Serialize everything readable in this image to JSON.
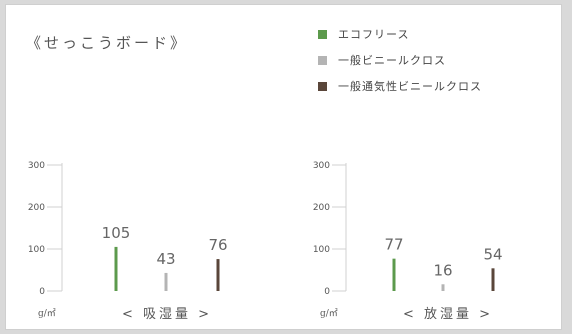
{
  "title": "《せっこうボード》",
  "legend": [
    {
      "label": "エコフリース",
      "color": "#5c9a4c"
    },
    {
      "label": "一般ビニールクロス",
      "color": "#b4b4b4"
    },
    {
      "label": "一般通気性ビニールクロス",
      "color": "#5a463a"
    }
  ],
  "chart_data": [
    {
      "type": "bar",
      "title": "",
      "xlabel": "< 吸湿量 >",
      "ylabel": "g/㎡",
      "ylim": [
        0,
        300
      ],
      "yticks": [
        "0",
        "100",
        "200",
        "300"
      ],
      "categories": [
        "エコフリース",
        "一般ビニールクロス",
        "一般通気性ビニールクロス"
      ],
      "values": [
        105,
        43,
        76
      ],
      "data_labels": [
        "105",
        "43",
        "76"
      ],
      "colors": [
        "#5c9a4c",
        "#b4b4b4",
        "#5a463a"
      ]
    },
    {
      "type": "bar",
      "title": "",
      "xlabel": "< 放湿量 >",
      "ylabel": "g/㎡",
      "ylim": [
        0,
        300
      ],
      "yticks": [
        "0",
        "100",
        "200",
        "300"
      ],
      "categories": [
        "エコフリース",
        "一般ビニールクロス",
        "一般通気性ビニールクロス"
      ],
      "values": [
        77,
        16,
        54
      ],
      "data_labels": [
        "77",
        "16",
        "54"
      ],
      "colors": [
        "#5c9a4c",
        "#b4b4b4",
        "#5a463a"
      ]
    }
  ]
}
